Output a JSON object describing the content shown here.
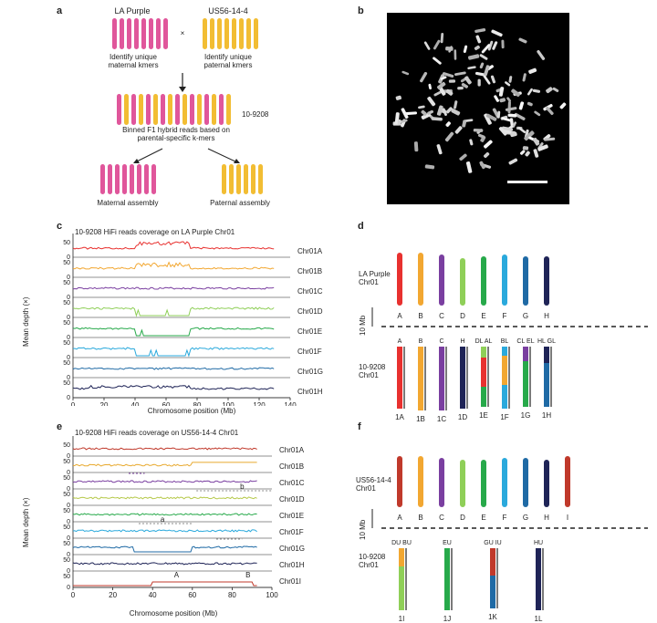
{
  "panels": {
    "a": {
      "label": "a",
      "parent_left": "LA Purple",
      "parent_right": "US56-14-4",
      "cross": "×",
      "left_desc": "Identify unique maternal kmers",
      "right_desc": "Identify unique paternal kmers",
      "hybrid": "10-9208",
      "binned": "Binned F1 hybrid reads based on parental-specific k-mers",
      "maternal": "Maternal assembly",
      "paternal": "Paternal assembly",
      "colors": {
        "maternal": "#e0569b",
        "paternal": "#f2bd33"
      }
    },
    "b": {
      "label": "b"
    },
    "c": {
      "label": "c",
      "title": "10-9208 HiFi reads coverage on LA Purple Chr01",
      "ylabel": "Mean depth (×)",
      "xlabel": "Chromosome position (Mb)",
      "x_ticks": [
        "0",
        "20",
        "40",
        "60",
        "80",
        "100",
        "120",
        "140"
      ],
      "y_ticks": [
        "0",
        "50"
      ],
      "tracks": [
        {
          "name": "Chr01A",
          "color": "#e8312f"
        },
        {
          "name": "Chr01B",
          "color": "#f2a731"
        },
        {
          "name": "Chr01C",
          "color": "#7a3fa0"
        },
        {
          "name": "Chr01D",
          "color": "#8fcf58"
        },
        {
          "name": "Chr01E",
          "color": "#27a94a"
        },
        {
          "name": "Chr01F",
          "color": "#2aa9dc"
        },
        {
          "name": "Chr01G",
          "color": "#1f6aa5"
        },
        {
          "name": "Chr01H",
          "color": "#1f2457"
        }
      ]
    },
    "d": {
      "label": "d",
      "top_label": "LA Purple Chr01",
      "top_letters": [
        "A",
        "B",
        "C",
        "D",
        "E",
        "F",
        "G",
        "H"
      ],
      "scale": "10 Mb",
      "bottom_label": "10-9208 Chr01",
      "bottom_names": [
        "1A",
        "1B",
        "1C",
        "1D",
        "1E",
        "1F",
        "1G",
        "1H"
      ],
      "bottom_heads": [
        "A",
        "B",
        "C",
        "H",
        "DL AL",
        "BL",
        "CL EL",
        "HL GL"
      ]
    },
    "e": {
      "label": "e",
      "title": "10-9208 HiFi reads coverage on US56-14-4 Chr01",
      "ylabel": "Mean depth (×)",
      "xlabel": "Chromosome position (Mb)",
      "x_ticks": [
        "0",
        "20",
        "40",
        "60",
        "80",
        "100"
      ],
      "y_ticks": [
        "0",
        "50"
      ],
      "tracks": [
        {
          "name": "Chr01A",
          "color": "#c0392b"
        },
        {
          "name": "Chr01B",
          "color": "#e8a92e"
        },
        {
          "name": "Chr01C",
          "color": "#7a3fa0"
        },
        {
          "name": "Chr01D",
          "color": "#b6c94a"
        },
        {
          "name": "Chr01E",
          "color": "#27a94a"
        },
        {
          "name": "Chr01F",
          "color": "#2aa9dc"
        },
        {
          "name": "Chr01G",
          "color": "#1f6aa5"
        },
        {
          "name": "Chr01H",
          "color": "#1f2457"
        },
        {
          "name": "Chr01I",
          "color": "#c0392b"
        }
      ],
      "annot_a": "a",
      "annot_b": "b",
      "annot_A": "A",
      "annot_B": "B"
    },
    "f": {
      "label": "f",
      "top_label": "US56-14-4 Chr01",
      "top_letters": [
        "A",
        "B",
        "C",
        "D",
        "E",
        "F",
        "G",
        "H",
        "I"
      ],
      "scale": "10 Mb",
      "bottom_label": "10-9208 Chr01",
      "bottom_names": [
        "1I",
        "1J",
        "1K",
        "1L"
      ],
      "bottom_heads": [
        "DU BU",
        "EU",
        "GU IU",
        "HU"
      ]
    }
  }
}
